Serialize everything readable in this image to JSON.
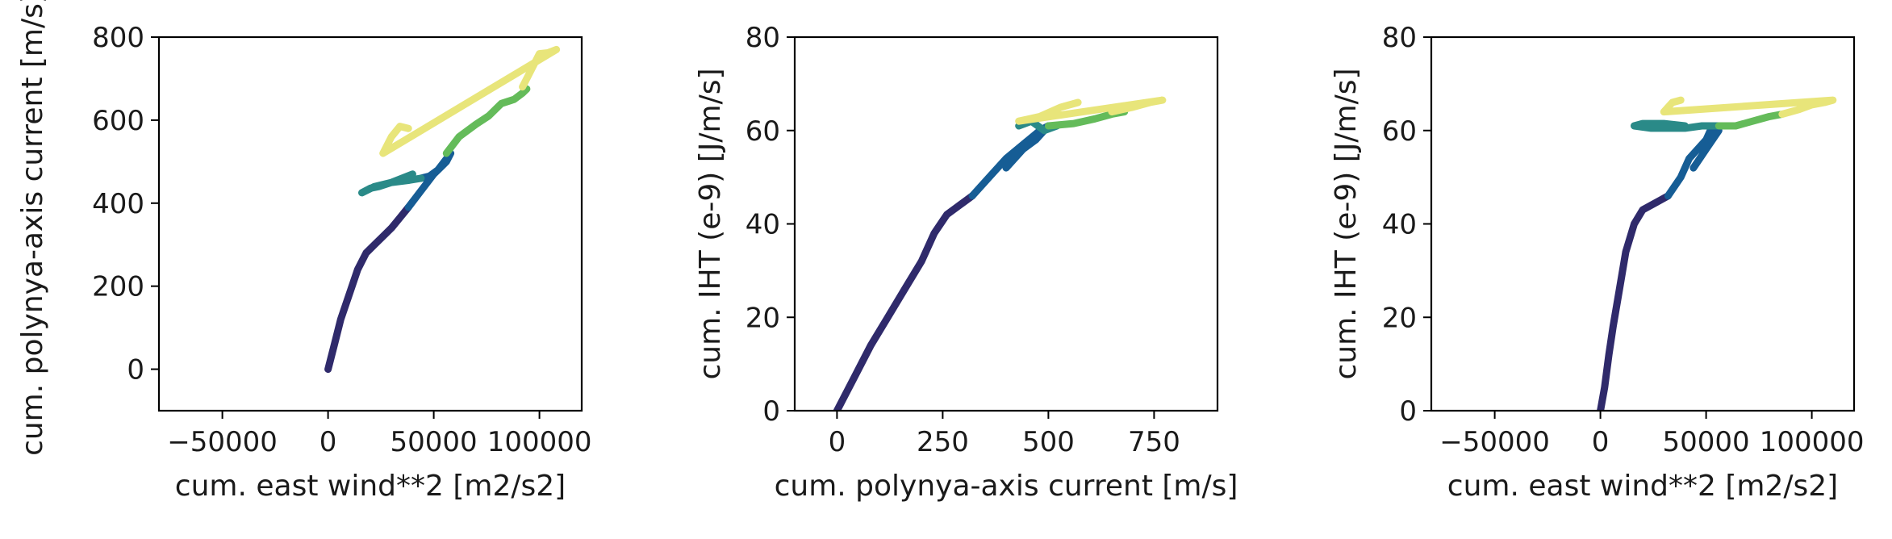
{
  "colors": {
    "series": [
      "#2f2a6b",
      "#165d95",
      "#2a8a88",
      "#64bb5a",
      "#e8e57a"
    ],
    "axis": "#000000",
    "text": "#1a1a1a"
  },
  "chart_data": [
    {
      "type": "scatter",
      "xlabel": "cum. east wind**2 [m2/s2]",
      "ylabel": "cum. polynya-axis current [m/s]",
      "xlim": [
        -80000,
        120000
      ],
      "ylim": [
        -100,
        800
      ],
      "xticks": [
        -50000,
        0,
        50000,
        100000
      ],
      "xtick_labels": [
        "−50000",
        "0",
        "50000",
        "100000"
      ],
      "yticks": [
        0,
        200,
        400,
        600,
        800
      ],
      "ytick_labels": [
        "0",
        "200",
        "400",
        "600",
        "800"
      ],
      "grid": false,
      "series": [
        {
          "x": [
            0,
            3000,
            6000,
            10000,
            14000,
            18000,
            22000,
            26000,
            30000,
            34000,
            38000
          ],
          "y": [
            0,
            60,
            120,
            180,
            240,
            280,
            300,
            320,
            340,
            365,
            390
          ]
        },
        {
          "x": [
            38000,
            44000,
            50000,
            54000,
            56000,
            58000,
            52000,
            48000,
            44000
          ],
          "y": [
            390,
            430,
            470,
            490,
            500,
            520,
            480,
            465,
            460
          ]
        },
        {
          "x": [
            44000,
            38000,
            30000,
            24000,
            20000,
            16000,
            22000,
            30000,
            40000
          ],
          "y": [
            460,
            455,
            450,
            440,
            436,
            425,
            440,
            450,
            470
          ]
        },
        {
          "x": [
            56000,
            62000,
            70000,
            76000,
            82000,
            88000,
            92000,
            94000
          ],
          "y": [
            520,
            560,
            590,
            610,
            640,
            650,
            665,
            675
          ]
        },
        {
          "x": [
            92000,
            96000,
            100000,
            104000,
            108000,
            26000,
            30000,
            34000,
            38000
          ],
          "y": [
            680,
            720,
            760,
            762,
            770,
            520,
            560,
            585,
            580
          ]
        }
      ]
    },
    {
      "type": "scatter",
      "xlabel": "cum. polynya-axis current [m/s]",
      "ylabel": "cum. IHT (e-9) [J/m/s]",
      "xlim": [
        -100,
        900
      ],
      "ylim": [
        0,
        80
      ],
      "xticks": [
        0,
        250,
        500,
        750
      ],
      "xtick_labels": [
        "0",
        "250",
        "500",
        "750"
      ],
      "yticks": [
        0,
        20,
        40,
        60,
        80
      ],
      "ytick_labels": [
        "0",
        "20",
        "40",
        "60",
        "80"
      ],
      "grid": false,
      "series": [
        {
          "x": [
            0,
            40,
            80,
            120,
            160,
            200,
            230,
            260,
            290,
            320
          ],
          "y": [
            0,
            7,
            14,
            20,
            26,
            32,
            38,
            42,
            44,
            46
          ]
        },
        {
          "x": [
            320,
            360,
            400,
            440,
            480,
            500,
            470,
            440,
            400
          ],
          "y": [
            46,
            50,
            54,
            57,
            60,
            61,
            58,
            56,
            52
          ]
        },
        {
          "x": [
            430,
            460,
            490,
            520
          ],
          "y": [
            61,
            62,
            60,
            61
          ]
        },
        {
          "x": [
            500,
            560,
            610,
            650,
            680
          ],
          "y": [
            61,
            61.5,
            62.5,
            63.5,
            64
          ]
        },
        {
          "x": [
            650,
            700,
            740,
            770,
            430,
            480,
            530,
            570
          ],
          "y": [
            64,
            65,
            66,
            66.5,
            62,
            63,
            65,
            66
          ]
        }
      ]
    },
    {
      "type": "scatter",
      "xlabel": "cum. east wind**2 [m2/s2]",
      "ylabel": "cum. IHT (e-9) [J/m/s]",
      "xlim": [
        -80000,
        120000
      ],
      "ylim": [
        0,
        80
      ],
      "xticks": [
        -50000,
        0,
        50000,
        100000
      ],
      "xtick_labels": [
        "−50000",
        "0",
        "50000",
        "100000"
      ],
      "yticks": [
        0,
        20,
        40,
        60,
        80
      ],
      "ytick_labels": [
        "0",
        "20",
        "40",
        "60",
        "80"
      ],
      "grid": false,
      "series": [
        {
          "x": [
            0,
            2000,
            4000,
            6000,
            9000,
            12000,
            16000,
            20000,
            24000,
            28000,
            32000
          ],
          "y": [
            0,
            5,
            12,
            18,
            26,
            34,
            40,
            43,
            44,
            45,
            46
          ]
        },
        {
          "x": [
            32000,
            38000,
            42000,
            46000,
            50000,
            52000,
            54000,
            56000,
            50000,
            44000
          ],
          "y": [
            46,
            50,
            54,
            56,
            58,
            60,
            61,
            60,
            56,
            52
          ]
        },
        {
          "x": [
            56000,
            48000,
            40000,
            32000,
            24000,
            16000,
            20000,
            30000,
            40000
          ],
          "y": [
            61,
            61,
            60.5,
            60.5,
            60.5,
            61,
            61.5,
            61.5,
            61
          ]
        },
        {
          "x": [
            56000,
            64000,
            72000,
            80000,
            86000
          ],
          "y": [
            61,
            61,
            62,
            63,
            63.5
          ]
        },
        {
          "x": [
            86000,
            94000,
            100000,
            106000,
            110000,
            30000,
            34000,
            38000
          ],
          "y": [
            63.5,
            64.5,
            65.5,
            66,
            66.5,
            64,
            66,
            66.5
          ]
        }
      ]
    }
  ]
}
